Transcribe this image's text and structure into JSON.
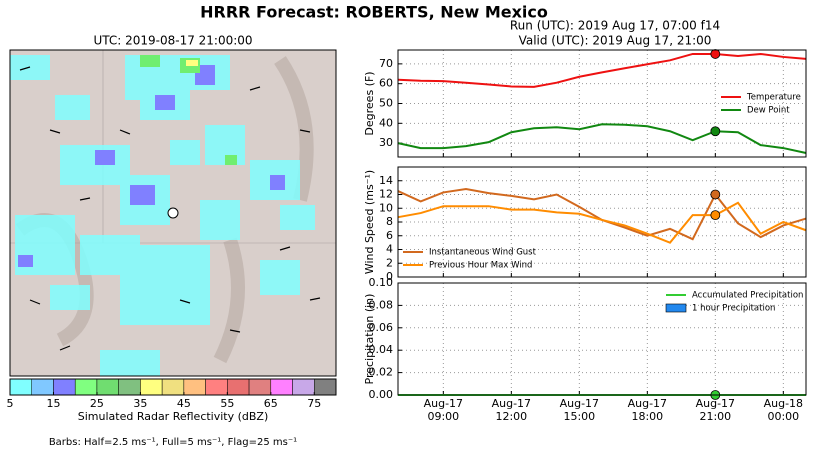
{
  "header": {
    "title": "HRRR Forecast: ROBERTS, New Mexico",
    "run": "Run (UTC): 2019 Aug 17, 07:00 f14",
    "valid": "Valid (UTC): 2019 Aug 17, 21:00"
  },
  "map": {
    "title": "UTC: 2019-08-17 21:00:00",
    "note": "Barbs: Half=2.5 ms⁻¹, Full=5 ms⁻¹, Flag=25 ms⁻¹",
    "colorbar": {
      "label": "Simulated Radar Reflectivity (dBZ)",
      "clim": [
        5,
        80
      ],
      "ticks": [
        5,
        15,
        25,
        35,
        45,
        55,
        65,
        75
      ],
      "colors": [
        "#80ffff",
        "#80c8ff",
        "#8080ff",
        "#80ff80",
        "#70dd70",
        "#80c080",
        "#ffff80",
        "#f0e080",
        "#ffc080",
        "#ff8080",
        "#e87070",
        "#e08080",
        "#ff80ff",
        "#c8a8e8",
        "#808080"
      ]
    }
  },
  "chart_data": [
    {
      "type": "line",
      "ylabel": "Degrees (F)",
      "ylim": [
        23,
        77
      ],
      "yticks": [
        30,
        40,
        50,
        60,
        70
      ],
      "grid": true,
      "legend": "lower right",
      "highlight": "Aug-17 21:00",
      "series": [
        {
          "name": "Temperature",
          "color": "#ee1111",
          "values": [
            62,
            61.5,
            61.3,
            60.5,
            59.6,
            58.6,
            58.4,
            60.5,
            63.5,
            65.7,
            67.8,
            69.8,
            71.8,
            75,
            75,
            74,
            75,
            73.5,
            72.5
          ]
        },
        {
          "name": "Dew Point",
          "color": "#118811",
          "values": [
            30,
            27.5,
            27.5,
            28.5,
            30.5,
            35.5,
            37.5,
            38,
            37,
            39.5,
            39.3,
            38.5,
            36,
            31.5,
            36,
            35.5,
            29,
            27.5,
            25
          ]
        }
      ]
    },
    {
      "type": "line",
      "ylabel": "Wind Speed (ms⁻¹)",
      "ylim": [
        0,
        16
      ],
      "yticks": [
        0,
        2,
        4,
        6,
        8,
        10,
        12,
        14
      ],
      "grid": true,
      "legend": "lower left",
      "highlight": "Aug-17 21:00",
      "series": [
        {
          "name": "Instantaneous Wind Gust",
          "color": "#d2691e",
          "values": [
            12.5,
            11,
            12.3,
            12.8,
            12.2,
            11.8,
            11.3,
            12,
            10.2,
            8.3,
            7.2,
            6.0,
            7.0,
            5.5,
            12,
            7.8,
            5.8,
            7.5,
            8.5
          ]
        },
        {
          "name": "Previous Hour Max Wind",
          "color": "#ff8c00",
          "values": [
            8.7,
            9.3,
            10.3,
            10.3,
            10.3,
            9.8,
            9.8,
            9.4,
            9.2,
            8.3,
            7.5,
            6.3,
            5.0,
            9.0,
            9.0,
            10.8,
            6.3,
            8.0,
            6.8
          ]
        }
      ]
    },
    {
      "type": "line",
      "ylabel": "Precipitation (in)",
      "ylim": [
        0,
        0.1
      ],
      "grid": true,
      "legend": "upper right",
      "highlight": "Aug-17 21:00",
      "yticks": [
        {
          "value": 0,
          "label": "0.00"
        },
        {
          "value": 0.02,
          "label": "0.02"
        },
        {
          "value": 0.04,
          "label": "0.04"
        },
        {
          "value": 0.06,
          "label": "0.06"
        },
        {
          "value": 0.08,
          "label": "0.08"
        },
        {
          "value": 0.1,
          "label": "0.10"
        }
      ],
      "categories": [
        "Aug-17 07:00",
        "Aug-17 08:00",
        "Aug-17 09:00",
        "Aug-17 10:00",
        "Aug-17 11:00",
        "Aug-17 12:00",
        "Aug-17 13:00",
        "Aug-17 14:00",
        "Aug-17 15:00",
        "Aug-17 16:00",
        "Aug-17 17:00",
        "Aug-17 18:00",
        "Aug-17 19:00",
        "Aug-17 20:00",
        "Aug-17 21:00",
        "Aug-17 22:00",
        "Aug-17 23:00",
        "Aug-18 00:00",
        "Aug-18 01:00"
      ],
      "xticks": [
        {
          "value": "Aug-17 09:00",
          "label": [
            "Aug-17",
            "09:00"
          ]
        },
        {
          "value": "Aug-17 12:00",
          "label": [
            "Aug-17",
            "12:00"
          ]
        },
        {
          "value": "Aug-17 15:00",
          "label": [
            "Aug-17",
            "15:00"
          ]
        },
        {
          "value": "Aug-17 18:00",
          "label": [
            "Aug-17",
            "18:00"
          ]
        },
        {
          "value": "Aug-17 21:00",
          "label": [
            "Aug-17",
            "21:00"
          ]
        },
        {
          "value": "Aug-18 00:00",
          "label": [
            "Aug-18",
            "00:00"
          ]
        }
      ],
      "series": [
        {
          "name": "Accumulated Precipitation",
          "color": "#33cc33",
          "values": [
            0,
            0,
            0,
            0,
            0,
            0,
            0,
            0,
            0,
            0,
            0,
            0,
            0,
            0,
            0,
            0,
            0,
            0,
            0
          ]
        },
        {
          "name": "1 hour Precipitation",
          "type": "bar",
          "color": "#2288ee",
          "values": [
            0,
            0,
            0,
            0,
            0,
            0,
            0,
            0,
            0,
            0,
            0,
            0,
            0,
            0,
            0,
            0,
            0,
            0,
            0
          ]
        }
      ]
    }
  ]
}
